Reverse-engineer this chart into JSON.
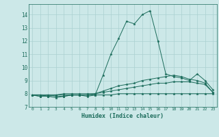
{
  "title": "",
  "xlabel": "Humidex (Indice chaleur)",
  "xlim": [
    -0.5,
    23.5
  ],
  "ylim": [
    7,
    14.8
  ],
  "yticks": [
    7,
    8,
    9,
    10,
    11,
    12,
    13,
    14
  ],
  "xticks": [
    0,
    1,
    2,
    3,
    4,
    5,
    6,
    7,
    8,
    9,
    10,
    11,
    12,
    13,
    14,
    15,
    16,
    17,
    18,
    19,
    20,
    21,
    22,
    23
  ],
  "bg_color": "#cce8e8",
  "grid_color": "#aad0d0",
  "line_color": "#1a6b5a",
  "lines": [
    [
      7.9,
      7.8,
      7.9,
      7.8,
      7.8,
      7.9,
      7.9,
      7.8,
      7.9,
      9.4,
      11.0,
      12.2,
      13.5,
      13.3,
      14.0,
      14.3,
      12.0,
      9.5,
      9.3,
      9.2,
      9.0,
      9.5,
      9.0,
      8.3
    ],
    [
      7.9,
      7.8,
      7.8,
      7.7,
      7.8,
      7.9,
      7.9,
      7.9,
      8.0,
      8.2,
      8.4,
      8.6,
      8.7,
      8.8,
      9.0,
      9.1,
      9.2,
      9.3,
      9.4,
      9.3,
      9.1,
      9.0,
      8.8,
      8.1
    ],
    [
      7.9,
      7.9,
      7.9,
      7.9,
      7.9,
      7.9,
      7.9,
      7.9,
      7.9,
      7.9,
      7.9,
      8.0,
      8.0,
      8.0,
      8.0,
      8.0,
      8.0,
      8.0,
      8.0,
      8.0,
      8.0,
      8.0,
      8.0,
      8.0
    ],
    [
      7.9,
      7.9,
      7.8,
      7.9,
      8.0,
      8.0,
      8.0,
      8.0,
      8.0,
      8.1,
      8.2,
      8.3,
      8.4,
      8.5,
      8.6,
      8.7,
      8.8,
      8.8,
      8.9,
      8.9,
      8.9,
      8.8,
      8.7,
      8.1
    ]
  ]
}
